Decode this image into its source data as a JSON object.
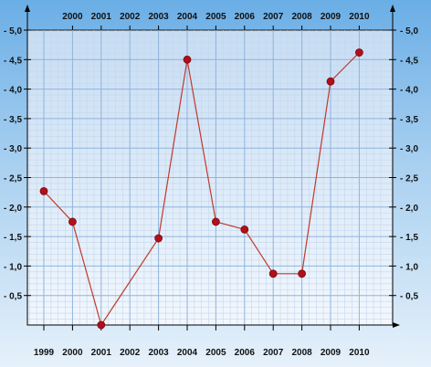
{
  "chart_data": {
    "type": "line",
    "title": "",
    "xlabel": "",
    "ylabel": "",
    "x_ticks_bottom": [
      "1999",
      "2000",
      "2001",
      "2002",
      "2003",
      "2004",
      "2005",
      "2006",
      "2007",
      "2008",
      "2009",
      "2010"
    ],
    "x_ticks_top": [
      "2000",
      "2001",
      "2002",
      "2003",
      "2004",
      "2005",
      "2006",
      "2007",
      "2008",
      "2009",
      "2010"
    ],
    "y_ticks_left": [
      "- 0,5",
      "- 1,0",
      "- 1,5",
      "- 2,0",
      "- 2,5",
      "- 3,0",
      "- 3,5",
      "- 4,0",
      "- 4,5",
      "- 5,0"
    ],
    "y_ticks_right": [
      "- 0,5",
      "- 1,0",
      "- 1,5",
      "- 2,0",
      "- 2,5",
      "- 3,0",
      "- 3,5",
      "- 4,0",
      "- 4,5",
      "- 5,0"
    ],
    "ylim": [
      0,
      5.0
    ],
    "grid": true,
    "series": [
      {
        "x": [
          "1999",
          "2000",
          "2001",
          "2003",
          "2004",
          "2005",
          "2006",
          "2007",
          "2008",
          "2009",
          "2010"
        ],
        "values": [
          2.27,
          1.75,
          0.0,
          1.47,
          4.5,
          1.75,
          1.62,
          0.87,
          0.87,
          4.13,
          4.62
        ],
        "line_color": "#c0392b",
        "marker_color": "#b0101a"
      }
    ]
  }
}
